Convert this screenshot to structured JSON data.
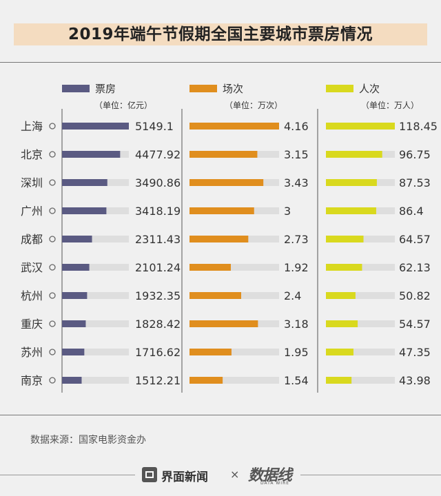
{
  "title": "2019年端午节假期全国主要城市票房情况",
  "source": "数据来源：国家电影资金办",
  "footer": {
    "brand": "界面新闻",
    "times": "×",
    "brand2": "数据线",
    "brand2_sub": "DATA WIRE"
  },
  "colors": {
    "box_office": "#5a5a82",
    "screenings": "#e08e1e",
    "attendance": "#d9d91e",
    "track": "#dedede"
  },
  "chart_data": {
    "type": "bar",
    "categories": [
      "上海",
      "北京",
      "深圳",
      "广州",
      "成都",
      "武汉",
      "杭州",
      "重庆",
      "苏州",
      "南京"
    ],
    "series": [
      {
        "name": "票房",
        "unit": "（单位：亿元）",
        "values": [
          "5149.1",
          "4477.92",
          "3490.86",
          "3418.19",
          "2311.43",
          "2101.24",
          "1932.35",
          "1828.42",
          "1716.62",
          "1512.21"
        ]
      },
      {
        "name": "场次",
        "unit": "（单位：万次）",
        "values": [
          "4.16",
          "3.15",
          "3.43",
          "3",
          "2.73",
          "1.92",
          "2.4",
          "3.18",
          "1.95",
          "1.54"
        ]
      },
      {
        "name": "人次",
        "unit": "（单位：万人）",
        "values": [
          "118.45",
          "96.75",
          "87.53",
          "86.4",
          "64.57",
          "62.13",
          "50.82",
          "54.57",
          "47.35",
          "43.98"
        ]
      }
    ]
  }
}
